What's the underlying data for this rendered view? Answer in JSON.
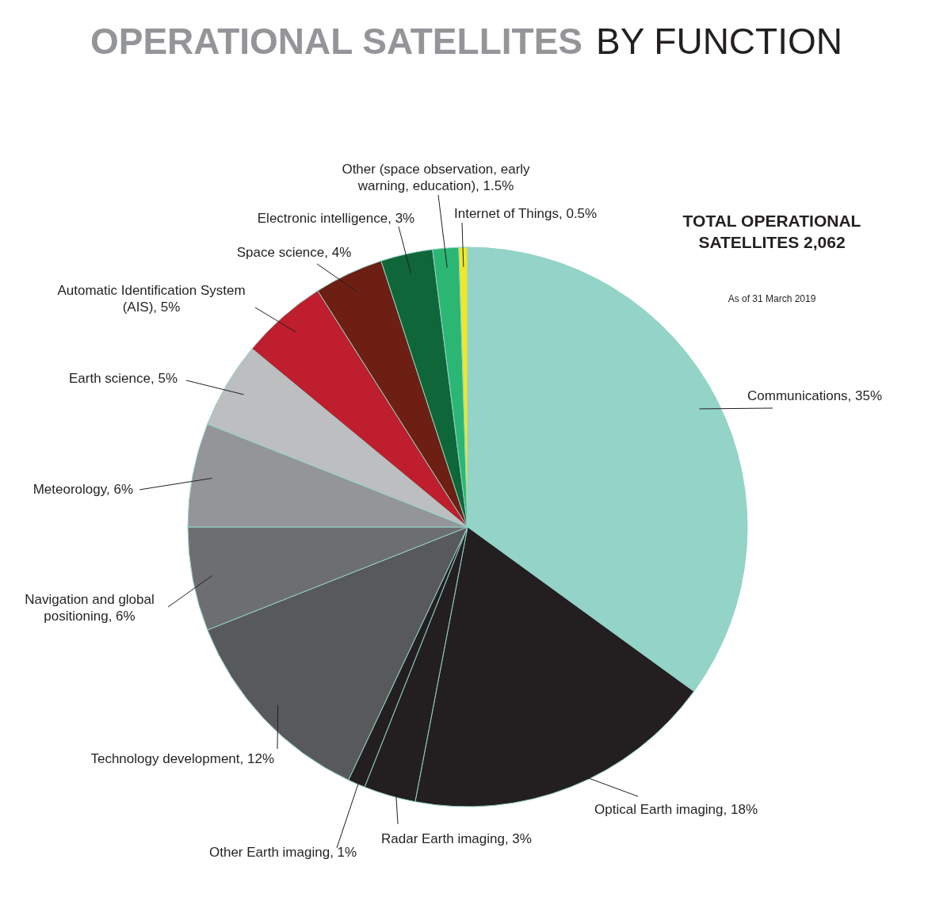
{
  "chart_data": {
    "type": "pie",
    "title": "OPERATIONAL SATELLITES BY FUNCTION",
    "categories": [
      "Communications",
      "Optical Earth imaging",
      "Radar Earth imaging",
      "Other Earth imaging",
      "Technology development",
      "Navigation and global positioning",
      "Meteorology",
      "Earth science",
      "Automatic Identification System (AIS)",
      "Space science",
      "Electronic intelligence",
      "Other (space observation, early warning, education)",
      "Internet of Things"
    ],
    "values": [
      35,
      18,
      3,
      1,
      12,
      6,
      6,
      5,
      5,
      4,
      3,
      1.5,
      0.5
    ],
    "value_labels": [
      "35%",
      "18%",
      "3%",
      "1%",
      "12%",
      "6%",
      "6%",
      "5%",
      "5%",
      "4%",
      "3%",
      "1.5%",
      "0.5%"
    ],
    "colors": [
      "#93d3c8",
      "#231f20",
      "#231f20",
      "#231f20",
      "#58595b",
      "#6d6e71",
      "#939598",
      "#bcbec0",
      "#be1e2d",
      "#6d1f14",
      "#0f6638",
      "#2bb673",
      "#f0e827"
    ],
    "annotations": [
      "TOTAL OPERATIONAL SATELLITES 2,062",
      "As of 31 March 2019"
    ]
  }
}
